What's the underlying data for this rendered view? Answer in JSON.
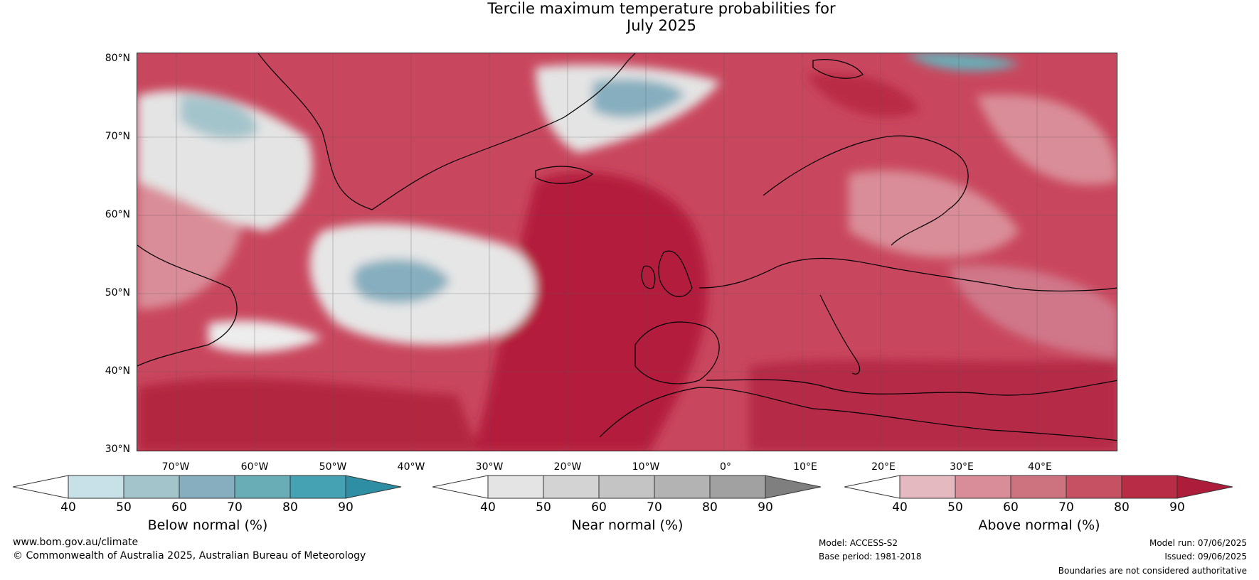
{
  "title": {
    "line1": "Tercile maximum temperature probabilities for",
    "line2": "July 2025"
  },
  "map": {
    "lat_labels": [
      "80°N",
      "70°N",
      "60°N",
      "50°N",
      "40°N",
      "30°N"
    ],
    "lon_labels": [
      "70°W",
      "60°W",
      "50°W",
      "40°W",
      "30°W",
      "20°W",
      "10°W",
      "0°",
      "10°E",
      "20°E",
      "30°E",
      "40°E"
    ]
  },
  "colorbars": [
    {
      "caption": "Below normal (%)",
      "ticks": [
        "40",
        "50",
        "60",
        "70",
        "80",
        "90"
      ],
      "colors": [
        "#ffffff",
        "#c8e1e8",
        "#a4c4cb",
        "#86aebe",
        "#69adb7",
        "#45a2b2",
        "#2e8fa4"
      ]
    },
    {
      "caption": "Near normal (%)",
      "ticks": [
        "40",
        "50",
        "60",
        "70",
        "80",
        "90"
      ],
      "colors": [
        "#ffffff",
        "#e4e4e4",
        "#d3d3d3",
        "#c4c4c4",
        "#b3b3b3",
        "#a1a1a1",
        "#7f7f7f"
      ]
    },
    {
      "caption": "Above normal (%)",
      "ticks": [
        "40",
        "50",
        "60",
        "70",
        "80",
        "90"
      ],
      "colors": [
        "#ffffff",
        "#e4b9c0",
        "#d98d98",
        "#cd7380",
        "#c55163",
        "#b92c45",
        "#ad1c3a"
      ]
    }
  ],
  "footer": {
    "website": "www.bom.gov.au/climate",
    "copyright": "© Commonwealth of Australia 2025, Australian Bureau of Meteorology",
    "model": "Model: ACCESS-S2",
    "base_period": "Base period: 1981-2018",
    "model_run": "Model run: 07/06/2025",
    "issued": "Issued: 09/06/2025",
    "disclaimer": "Boundaries are not considered authoritative"
  }
}
